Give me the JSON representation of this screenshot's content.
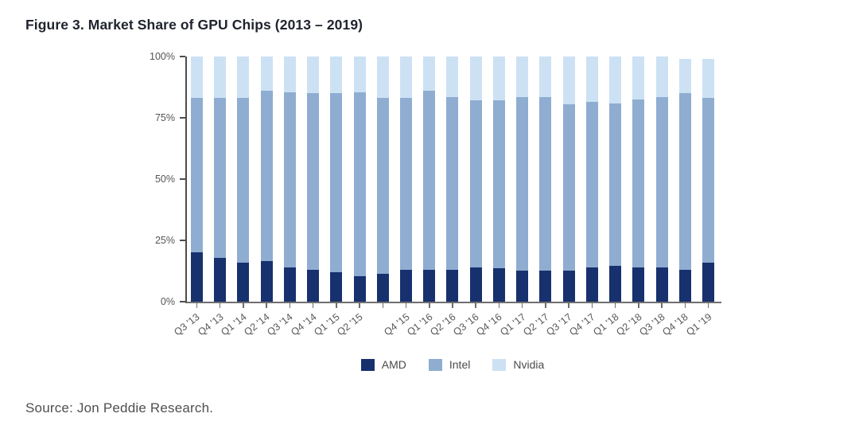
{
  "figure": {
    "title": "Figure 3. Market Share of GPU Chips (2013 – 2019)",
    "source": "Source: Jon Peddie Research."
  },
  "chart_data": {
    "type": "bar",
    "subtype": "stacked-percentage",
    "title": "Figure 3. Market Share of GPU Chips (2013 – 2019)",
    "xlabel": "",
    "ylabel": "",
    "ylim": [
      0,
      100
    ],
    "grid": false,
    "legend_position": "bottom-center",
    "y_axis_ticks": [
      "0%",
      "25%",
      "50%",
      "75%",
      "100%"
    ],
    "series_order": [
      "AMD",
      "Intel",
      "Nvidia"
    ],
    "legend": [
      {
        "label": "AMD",
        "color": "#17306e"
      },
      {
        "label": "Intel",
        "color": "#8fadd1"
      },
      {
        "label": "Nvidia",
        "color": "#cde1f4"
      }
    ],
    "note": "values in percent; the bar between Q2 '15 and Q4 '15 has no visible x-axis label",
    "bars": [
      {
        "label": "Q3 '13",
        "AMD": 20,
        "Intel": 63,
        "Nvidia": 17
      },
      {
        "label": "Q4 '13",
        "AMD": 18,
        "Intel": 65,
        "Nvidia": 17
      },
      {
        "label": "Q1 '14",
        "AMD": 16,
        "Intel": 67,
        "Nvidia": 17
      },
      {
        "label": "Q2 '14",
        "AMD": 16.5,
        "Intel": 69.5,
        "Nvidia": 14
      },
      {
        "label": "Q3 '14",
        "AMD": 14,
        "Intel": 71.5,
        "Nvidia": 14.5
      },
      {
        "label": "Q4 '14",
        "AMD": 13,
        "Intel": 72,
        "Nvidia": 15
      },
      {
        "label": "Q1 '15",
        "AMD": 12,
        "Intel": 73,
        "Nvidia": 15
      },
      {
        "label": "Q2 '15",
        "AMD": 10.5,
        "Intel": 75,
        "Nvidia": 14.5
      },
      {
        "label": "",
        "AMD": 11.5,
        "Intel": 71.5,
        "Nvidia": 17
      },
      {
        "label": "Q4 '15",
        "AMD": 13,
        "Intel": 70,
        "Nvidia": 17
      },
      {
        "label": "Q1 '16",
        "AMD": 13,
        "Intel": 73,
        "Nvidia": 14
      },
      {
        "label": "Q2 '16",
        "AMD": 13,
        "Intel": 70.5,
        "Nvidia": 16.5
      },
      {
        "label": "Q3 '16",
        "AMD": 14,
        "Intel": 68,
        "Nvidia": 18
      },
      {
        "label": "Q4 '16",
        "AMD": 13.5,
        "Intel": 68.5,
        "Nvidia": 18
      },
      {
        "label": "Q1 '17",
        "AMD": 12.5,
        "Intel": 71,
        "Nvidia": 16.5
      },
      {
        "label": "Q2 '17",
        "AMD": 12.5,
        "Intel": 71,
        "Nvidia": 16.5
      },
      {
        "label": "Q3 '17",
        "AMD": 12.5,
        "Intel": 68,
        "Nvidia": 19.5
      },
      {
        "label": "Q4 '17",
        "AMD": 14,
        "Intel": 67.5,
        "Nvidia": 18.5
      },
      {
        "label": "Q1 '18",
        "AMD": 14.5,
        "Intel": 66.5,
        "Nvidia": 19
      },
      {
        "label": "Q2 '18",
        "AMD": 14,
        "Intel": 68.5,
        "Nvidia": 17.5
      },
      {
        "label": "Q3 '18",
        "AMD": 14,
        "Intel": 69.5,
        "Nvidia": 16.5
      },
      {
        "label": "Q4 '18",
        "AMD": 13,
        "Intel": 72,
        "Nvidia": 14
      },
      {
        "label": "Q1 '19",
        "AMD": 16,
        "Intel": 67,
        "Nvidia": 16
      }
    ]
  }
}
